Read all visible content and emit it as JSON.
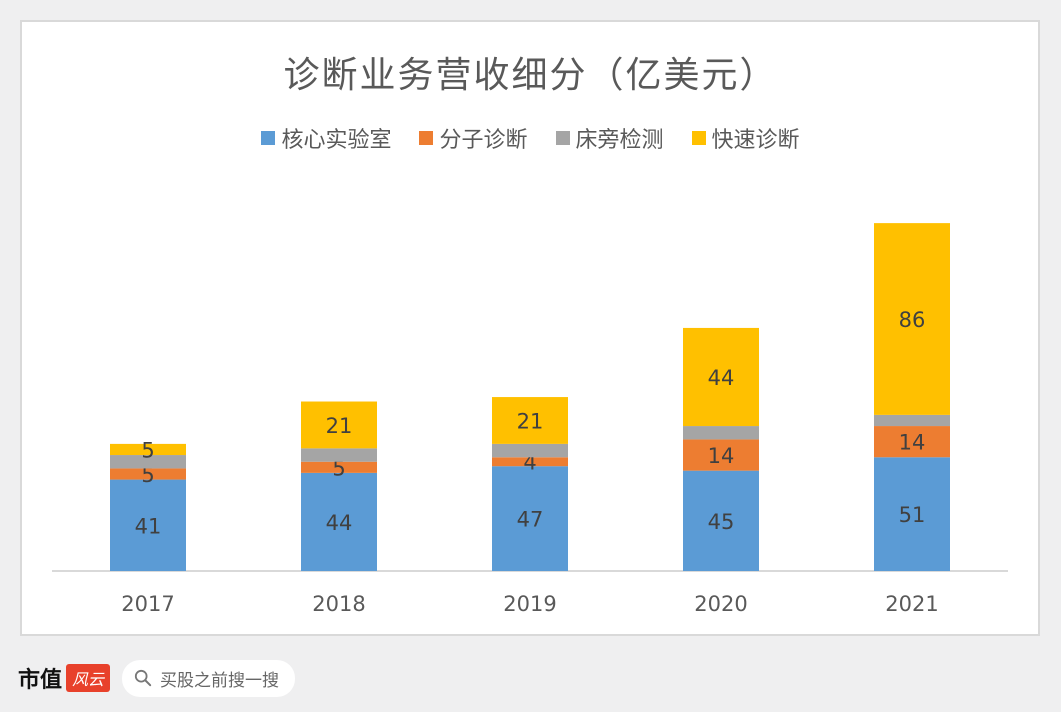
{
  "chart_data": {
    "type": "bar",
    "stacked": true,
    "title": "诊断业务营收细分（亿美元）",
    "categories": [
      "2017",
      "2018",
      "2019",
      "2020",
      "2021"
    ],
    "series": [
      {
        "name": "核心实验室",
        "color": "#5b9bd5",
        "values": [
          41,
          44,
          47,
          45,
          51
        ],
        "labels": [
          "41",
          "44",
          "47",
          "45",
          "51"
        ]
      },
      {
        "name": "分子诊断",
        "color": "#ed7d31",
        "values": [
          5,
          5,
          4,
          14,
          14
        ],
        "labels": [
          "5",
          "5",
          "4",
          "14",
          "14"
        ]
      },
      {
        "name": "床旁检测",
        "color": "#a5a5a5",
        "values": [
          6,
          6,
          6,
          6,
          5
        ],
        "labels": [
          "",
          "",
          "",
          "",
          ""
        ]
      },
      {
        "name": "快速诊断",
        "color": "#ffc000",
        "values": [
          5,
          21,
          21,
          44,
          86
        ],
        "labels": [
          "5",
          "21",
          "21",
          "44",
          "86"
        ]
      }
    ],
    "legend_position": "top",
    "grid": false
  },
  "footer": {
    "brand_name": "市值",
    "brand_badge": "风云",
    "search_placeholder": "买股之前搜一搜"
  }
}
